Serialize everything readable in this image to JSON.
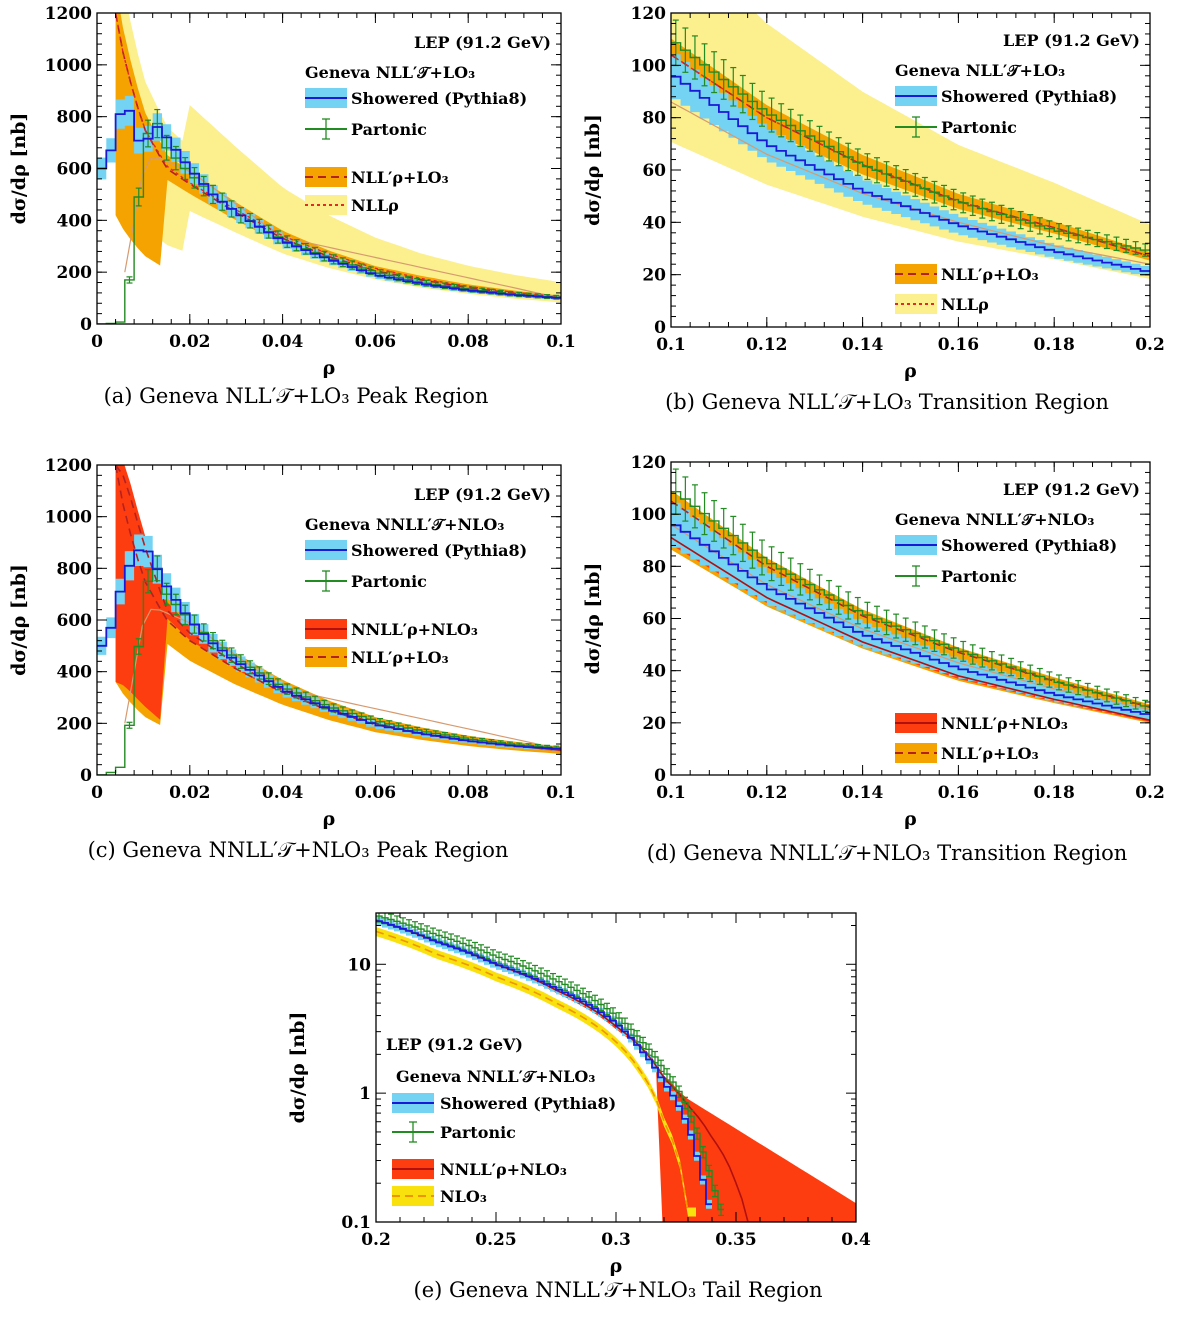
{
  "colors": {
    "showered_band": "#74d2f3",
    "showered_line": "#1a1ad6",
    "partonic": "#228b22",
    "nll_band": "#f4a300",
    "nll_line": "#b22222",
    "nllrho_band": "#fbef8e",
    "nllrho_line": "#e8262c",
    "nnll_band": "#fd3d10",
    "nnll_line": "#b01010",
    "nlo_band": "#f9e10e",
    "nlo_line": "#f09400",
    "smooth_line": "#d79a6e"
  },
  "charts": [
    {
      "id": "a",
      "caption": "(a)   GENEVA NLL′_T+LO3 Peak Region",
      "caption_text": "(a)   Geneva NLL′𝒯+LO₃ Peak Region",
      "xlabel": "ρ",
      "ylabel": "dσ/dρ [nb]",
      "xticks": [
        "0",
        "0.02",
        "0.04",
        "0.06",
        "0.08",
        "0.1"
      ],
      "yticks": [
        "0",
        "200",
        "400",
        "600",
        "800",
        "1000",
        "1200"
      ],
      "legend_title": "LEP (91.2 GeV)",
      "legend_subtitle": "Geneva NLL′𝒯+LO₃",
      "legend": [
        "Showered (Pythia8)",
        "Partonic",
        "NLL′ρ+LO₃",
        "NLLρ"
      ]
    },
    {
      "id": "b",
      "caption_text": "(b)   Geneva NLL′𝒯+LO₃ Transition Region",
      "xlabel": "ρ",
      "ylabel": "dσ/dρ [nb]",
      "xticks": [
        "0.1",
        "0.12",
        "0.14",
        "0.16",
        "0.18",
        "0.2"
      ],
      "yticks": [
        "0",
        "20",
        "40",
        "60",
        "80",
        "100",
        "120"
      ],
      "legend_title": "LEP (91.2 GeV)",
      "legend_subtitle": "Geneva NLL′𝒯+LO₃",
      "legend": [
        "Showered (Pythia8)",
        "Partonic",
        "NLL′ρ+LO₃",
        "NLLρ"
      ]
    },
    {
      "id": "c",
      "caption_text": "(c)   Geneva NNLL′𝒯+NLO₃ Peak Region",
      "xlabel": "ρ",
      "ylabel": "dσ/dρ [nb]",
      "xticks": [
        "0",
        "0.02",
        "0.04",
        "0.06",
        "0.08",
        "0.1"
      ],
      "yticks": [
        "0",
        "200",
        "400",
        "600",
        "800",
        "1000",
        "1200"
      ],
      "legend_title": "LEP (91.2 GeV)",
      "legend_subtitle": "Geneva NNLL′𝒯+NLO₃",
      "legend": [
        "Showered (Pythia8)",
        "Partonic",
        "NNLL′ρ+NLO₃",
        "NLL′ρ+LO₃"
      ]
    },
    {
      "id": "d",
      "caption_text": "(d)   Geneva NNLL′𝒯+NLO₃ Transition Region",
      "xlabel": "ρ",
      "ylabel": "dσ/dρ [nb]",
      "xticks": [
        "0.1",
        "0.12",
        "0.14",
        "0.16",
        "0.18",
        "0.2"
      ],
      "yticks": [
        "0",
        "20",
        "40",
        "60",
        "80",
        "100",
        "120"
      ],
      "legend_title": "LEP (91.2 GeV)",
      "legend_subtitle": "Geneva NNLL′𝒯+NLO₃",
      "legend": [
        "Showered (Pythia8)",
        "Partonic",
        "NNLL′ρ+NLO₃",
        "NLL′ρ+LO₃"
      ]
    },
    {
      "id": "e",
      "caption_text": "(e)   Geneva NNLL′𝒯+NLO₃ Tail Region",
      "xlabel": "ρ",
      "ylabel": "dσ/dρ [nb]",
      "xticks": [
        "0.2",
        "0.25",
        "0.3",
        "0.35",
        "0.4"
      ],
      "yticks": [
        "0.1",
        "1",
        "10"
      ],
      "legend_title": "LEP (91.2 GeV)",
      "legend_subtitle": "Geneva NNLL′𝒯+NLO₃",
      "legend": [
        "Showered (Pythia8)",
        "Partonic",
        "NNLL′ρ+NLO₃",
        "NLO₃"
      ]
    }
  ],
  "chart_data": [
    {
      "type": "line",
      "title": "",
      "xlabel": "ρ",
      "ylabel": "dσ/dρ [nb]",
      "xlim": [
        0,
        0.1
      ],
      "ylim": [
        0,
        1200
      ],
      "series": [
        {
          "name": "Showered (Pythia8)",
          "x": [
            0.002,
            0.006,
            0.01,
            0.012,
            0.015,
            0.02,
            0.025,
            0.03,
            0.04,
            0.05,
            0.06,
            0.07,
            0.08,
            0.09,
            0.1
          ],
          "values": [
            600,
            880,
            650,
            780,
            720,
            600,
            500,
            430,
            320,
            250,
            190,
            155,
            130,
            112,
            100
          ]
        },
        {
          "name": "Partonic",
          "x": [
            0.002,
            0.006,
            0.01,
            0.012,
            0.015,
            0.02,
            0.025,
            0.03,
            0.04,
            0.05,
            0.06,
            0.07,
            0.08,
            0.09,
            0.1
          ],
          "values": [
            0,
            10,
            650,
            820,
            680,
            580,
            500,
            430,
            325,
            255,
            200,
            160,
            135,
            115,
            102
          ]
        },
        {
          "name": "NLL′ρ+LO₃",
          "x": [
            0.004,
            0.006,
            0.01,
            0.015,
            0.02,
            0.03,
            0.04,
            0.05,
            0.06,
            0.07,
            0.08,
            0.09,
            0.1
          ],
          "values": [
            1200,
            1010,
            760,
            600,
            540,
            430,
            330,
            260,
            205,
            170,
            140,
            118,
            100
          ]
        },
        {
          "name": "NLLρ",
          "x": [
            0.004,
            0.006,
            0.01,
            0.015,
            0.02,
            0.03,
            0.04,
            0.05,
            0.06,
            0.07,
            0.08,
            0.09,
            0.1
          ],
          "values": [
            1200,
            1010,
            760,
            610,
            545,
            440,
            340,
            270,
            215,
            175,
            145,
            122,
            104
          ]
        }
      ]
    },
    {
      "type": "line",
      "title": "",
      "xlabel": "ρ",
      "ylabel": "dσ/dρ [nb]",
      "xlim": [
        0.1,
        0.2
      ],
      "ylim": [
        0,
        120
      ],
      "series": [
        {
          "name": "Showered (Pythia8)",
          "x": [
            0.1,
            0.12,
            0.14,
            0.16,
            0.18,
            0.2
          ],
          "values": [
            97,
            70,
            52,
            39,
            29,
            21
          ]
        },
        {
          "name": "Partonic",
          "x": [
            0.1,
            0.12,
            0.14,
            0.16,
            0.18,
            0.2
          ],
          "values": [
            110,
            82,
            62,
            48,
            37,
            29
          ]
        },
        {
          "name": "NLL′ρ+LO₃",
          "x": [
            0.1,
            0.12,
            0.14,
            0.16,
            0.18,
            0.2
          ],
          "values": [
            104,
            80,
            62,
            48,
            38,
            27
          ]
        },
        {
          "name": "NLLρ",
          "x": [
            0.1,
            0.12,
            0.14,
            0.16,
            0.18,
            0.2
          ],
          "values": [
            104,
            80,
            62,
            48,
            38,
            27
          ]
        }
      ]
    },
    {
      "type": "line",
      "title": "",
      "xlabel": "ρ",
      "ylabel": "dσ/dρ [nb]",
      "xlim": [
        0,
        0.1
      ],
      "ylim": [
        0,
        1200
      ],
      "series": [
        {
          "name": "Showered (Pythia8)",
          "x": [
            0.002,
            0.006,
            0.01,
            0.012,
            0.015,
            0.02,
            0.025,
            0.03,
            0.04,
            0.05,
            0.06,
            0.07,
            0.08,
            0.09,
            0.1
          ],
          "values": [
            500,
            780,
            900,
            830,
            730,
            600,
            510,
            440,
            330,
            255,
            195,
            160,
            132,
            112,
            100
          ]
        },
        {
          "name": "Partonic",
          "x": [
            0.002,
            0.006,
            0.01,
            0.012,
            0.015,
            0.02,
            0.025,
            0.03,
            0.04,
            0.05,
            0.06,
            0.07,
            0.08,
            0.09,
            0.1
          ],
          "values": [
            0,
            40,
            650,
            850,
            700,
            600,
            520,
            450,
            340,
            265,
            210,
            170,
            140,
            118,
            104
          ]
        },
        {
          "name": "NNLL′ρ+NLO₃",
          "x": [
            0.004,
            0.006,
            0.01,
            0.015,
            0.02,
            0.03,
            0.04,
            0.05,
            0.06,
            0.07,
            0.08,
            0.09,
            0.1
          ],
          "values": [
            1200,
            1150,
            900,
            640,
            550,
            430,
            330,
            255,
            200,
            160,
            132,
            112,
            96
          ]
        },
        {
          "name": "NLL′ρ+LO₃",
          "x": [
            0.004,
            0.006,
            0.01,
            0.015,
            0.02,
            0.03,
            0.04,
            0.05,
            0.06,
            0.07,
            0.08,
            0.09,
            0.1
          ],
          "values": [
            1200,
            1010,
            760,
            600,
            520,
            410,
            320,
            250,
            195,
            160,
            132,
            112,
            96
          ]
        }
      ]
    },
    {
      "type": "line",
      "title": "",
      "xlabel": "ρ",
      "ylabel": "dσ/dρ [nb]",
      "xlim": [
        0.1,
        0.2
      ],
      "ylim": [
        0,
        120
      ],
      "series": [
        {
          "name": "Showered (Pythia8)",
          "x": [
            0.1,
            0.12,
            0.14,
            0.16,
            0.18,
            0.2
          ],
          "values": [
            97,
            72,
            54,
            41,
            31,
            23
          ]
        },
        {
          "name": "Partonic",
          "x": [
            0.1,
            0.12,
            0.14,
            0.16,
            0.18,
            0.2
          ],
          "values": [
            110,
            82,
            62,
            48,
            36,
            26
          ]
        },
        {
          "name": "NNLL′ρ+NLO₃",
          "x": [
            0.1,
            0.12,
            0.14,
            0.16,
            0.18,
            0.2
          ],
          "values": [
            91,
            68,
            51,
            38,
            29,
            21
          ]
        },
        {
          "name": "NLL′ρ+LO₃",
          "x": [
            0.1,
            0.12,
            0.14,
            0.16,
            0.18,
            0.2
          ],
          "values": [
            105,
            80,
            61,
            47,
            36,
            26
          ]
        }
      ]
    },
    {
      "type": "line",
      "title": "",
      "xlabel": "ρ",
      "ylabel": "dσ/dρ [nb]",
      "xlim": [
        0.2,
        0.4
      ],
      "ylim": [
        0.1,
        25
      ],
      "yscale": "log",
      "series": [
        {
          "name": "Showered (Pythia8)",
          "x": [
            0.2,
            0.225,
            0.25,
            0.275,
            0.3,
            0.31,
            0.32,
            0.33,
            0.335,
            0.34
          ],
          "values": [
            22,
            15,
            10,
            6.5,
            3.5,
            2.2,
            1.2,
            0.55,
            0.25,
            0.1
          ]
        },
        {
          "name": "Partonic",
          "x": [
            0.2,
            0.225,
            0.25,
            0.275,
            0.3,
            0.31,
            0.32,
            0.33,
            0.335,
            0.34,
            0.345
          ],
          "values": [
            24,
            17,
            11.5,
            7.5,
            4,
            2.6,
            1.5,
            0.75,
            0.4,
            0.2,
            0.1
          ]
        },
        {
          "name": "NNLL′ρ+NLO₃",
          "x": [
            0.2,
            0.225,
            0.25,
            0.275,
            0.3,
            0.32,
            0.33,
            0.34,
            0.35,
            0.355
          ],
          "values": [
            22,
            15,
            10,
            6.3,
            3.3,
            1.3,
            0.8,
            0.45,
            0.2,
            0.1
          ]
        },
        {
          "name": "NLO₃",
          "x": [
            0.2,
            0.225,
            0.25,
            0.275,
            0.3,
            0.31,
            0.32,
            0.33
          ],
          "values": [
            18,
            12,
            8,
            5,
            2.5,
            1.5,
            0.6,
            0.12
          ]
        }
      ]
    }
  ]
}
